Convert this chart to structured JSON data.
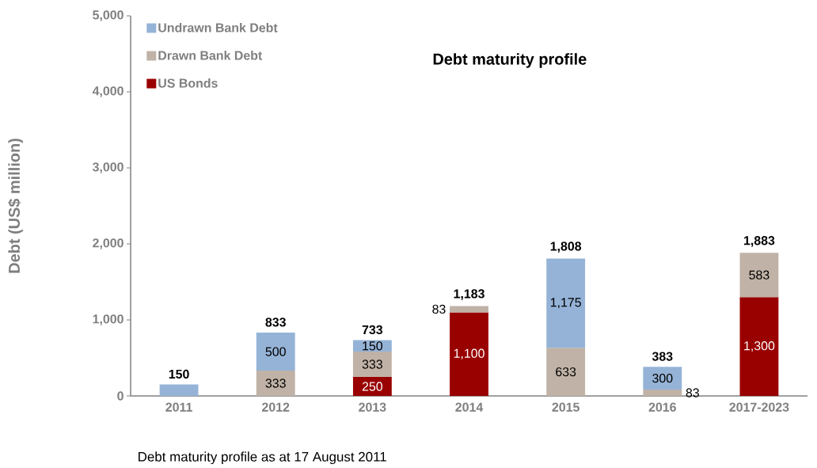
{
  "chart_data": {
    "type": "bar",
    "stacked": true,
    "title": "Debt maturity profile",
    "ylabel": "Debt (US$ million)",
    "categories": [
      "2011",
      "2012",
      "2013",
      "2014",
      "2015",
      "2016",
      "2017-2023"
    ],
    "series": [
      {
        "name": "US Bonds",
        "color": "#990000",
        "values": [
          0,
          0,
          250,
          1100,
          0,
          0,
          1300
        ],
        "value_labels": [
          null,
          null,
          "250",
          "1,100",
          null,
          null,
          "1,300"
        ]
      },
      {
        "name": "Drawn Bank Debt",
        "color": "#c0b2a6",
        "values": [
          0,
          333,
          333,
          83,
          633,
          83,
          583
        ],
        "value_labels": [
          null,
          "333",
          "333",
          "83",
          "633",
          "83",
          "583"
        ]
      },
      {
        "name": "Undrawn Bank Debt",
        "color": "#95b3d7",
        "values": [
          150,
          500,
          150,
          0,
          1175,
          300,
          0
        ],
        "value_labels": [
          null,
          "500",
          "150",
          null,
          "1,175",
          "300",
          null
        ]
      }
    ],
    "totals": [
      "150",
      "833",
      "733",
      "1,183",
      "1,808",
      "383",
      "1,883"
    ],
    "ylim": [
      0,
      5000
    ],
    "yticks": [
      {
        "value": 0,
        "label": "0"
      },
      {
        "value": 1000,
        "label": "1,000"
      },
      {
        "value": 2000,
        "label": "2,000"
      },
      {
        "value": 3000,
        "label": "3,000"
      },
      {
        "value": 4000,
        "label": "4,000"
      },
      {
        "value": 5000,
        "label": "5,000"
      }
    ],
    "legend": "top left",
    "grid": false,
    "annotations": [
      "Debt maturity profile as at 17 August 2011"
    ]
  }
}
